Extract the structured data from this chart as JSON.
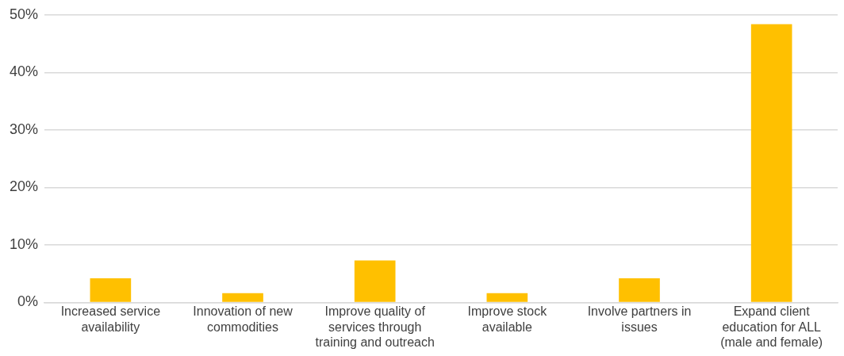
{
  "chart_data": {
    "type": "bar",
    "categories": [
      "Increased service availability",
      "Innovation of new commodities",
      "Improve quality of services through training and outreach",
      "Improve stock available",
      "Involve partners in issues",
      "Expand client education for ALL (male and female)"
    ],
    "values": [
      4.2,
      1.6,
      7.3,
      1.6,
      4.2,
      48.4
    ],
    "color": "#ffc000",
    "ylim": [
      0,
      50
    ],
    "yticks": [
      {
        "value": 0,
        "label": "0%"
      },
      {
        "value": 10,
        "label": "10%"
      },
      {
        "value": 20,
        "label": "20%"
      },
      {
        "value": 30,
        "label": "30%"
      },
      {
        "value": 40,
        "label": "40%"
      },
      {
        "value": 50,
        "label": "50%"
      }
    ],
    "grid": "y"
  }
}
